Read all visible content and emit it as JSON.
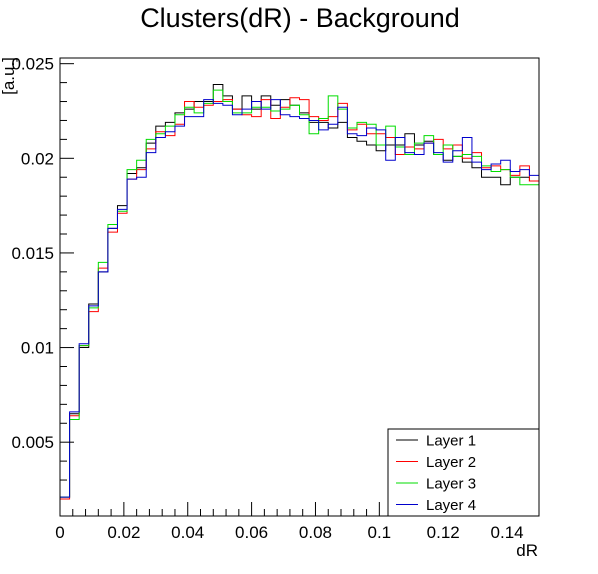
{
  "chart_data": {
    "type": "line",
    "title": "Clusters(dR) - Background",
    "xlabel": "dR",
    "ylabel": "[a.u.]",
    "xlim": [
      0,
      0.15
    ],
    "ylim": [
      0.0011,
      0.0253
    ],
    "xticks": [
      {
        "v": 0,
        "label": "0"
      },
      {
        "v": 0.02,
        "label": "0.02"
      },
      {
        "v": 0.04,
        "label": "0.04"
      },
      {
        "v": 0.06,
        "label": "0.06"
      },
      {
        "v": 0.08,
        "label": "0.08"
      },
      {
        "v": 0.1,
        "label": "0.1"
      },
      {
        "v": 0.12,
        "label": "0.12"
      },
      {
        "v": 0.14,
        "label": "0.14"
      }
    ],
    "yticks": [
      {
        "v": 0.005,
        "label": "0.005"
      },
      {
        "v": 0.01,
        "label": "0.01"
      },
      {
        "v": 0.015,
        "label": "0.015"
      },
      {
        "v": 0.02,
        "label": "0.02"
      },
      {
        "v": 0.025,
        "label": "0.025"
      }
    ],
    "bin_width": 0.003,
    "series": [
      {
        "name": "Layer 1",
        "color": "#000000",
        "values": [
          0.0021,
          0.0065,
          0.01,
          0.0123,
          0.014,
          0.0163,
          0.0175,
          0.0192,
          0.0195,
          0.0208,
          0.0217,
          0.0219,
          0.0224,
          0.0226,
          0.023,
          0.023,
          0.0239,
          0.0233,
          0.0226,
          0.0233,
          0.0226,
          0.0233,
          0.0228,
          0.0231,
          0.0228,
          0.0224,
          0.0219,
          0.0219,
          0.0216,
          0.0219,
          0.0211,
          0.0209,
          0.0207,
          0.0204,
          0.0207,
          0.0207,
          0.0213,
          0.0207,
          0.0209,
          0.0202,
          0.0199,
          0.0201,
          0.0198,
          0.0195,
          0.019,
          0.019,
          0.0186,
          0.019,
          0.019,
          0.0188
        ]
      },
      {
        "name": "Layer 2",
        "color": "#ff0000",
        "values": [
          0.002,
          0.0064,
          0.0101,
          0.0119,
          0.0142,
          0.0161,
          0.0171,
          0.0189,
          0.0194,
          0.0205,
          0.0214,
          0.0212,
          0.0218,
          0.023,
          0.0227,
          0.0228,
          0.023,
          0.0231,
          0.0226,
          0.0223,
          0.0222,
          0.0231,
          0.0221,
          0.0227,
          0.0232,
          0.0231,
          0.0222,
          0.022,
          0.0222,
          0.0229,
          0.0215,
          0.0218,
          0.0213,
          0.0213,
          0.0211,
          0.0202,
          0.0206,
          0.0205,
          0.0208,
          0.021,
          0.0205,
          0.0207,
          0.02,
          0.0203,
          0.0195,
          0.0196,
          0.0194,
          0.0191,
          0.0196,
          0.0188
        ]
      },
      {
        "name": "Layer 3",
        "color": "#00dd00",
        "values": [
          0.0021,
          0.0062,
          0.0101,
          0.0121,
          0.0145,
          0.0165,
          0.0172,
          0.0194,
          0.0199,
          0.021,
          0.0213,
          0.0217,
          0.0223,
          0.0227,
          0.0224,
          0.0229,
          0.0236,
          0.023,
          0.0224,
          0.0224,
          0.0227,
          0.0227,
          0.0225,
          0.0226,
          0.0228,
          0.0223,
          0.0213,
          0.0221,
          0.0233,
          0.0226,
          0.0216,
          0.0219,
          0.0218,
          0.0207,
          0.0217,
          0.0206,
          0.0202,
          0.0208,
          0.0212,
          0.0202,
          0.0207,
          0.0201,
          0.0202,
          0.0201,
          0.0196,
          0.0193,
          0.0194,
          0.019,
          0.0186,
          0.0186
        ]
      },
      {
        "name": "Layer 4",
        "color": "#0000cc",
        "values": [
          0.0021,
          0.0066,
          0.0102,
          0.0122,
          0.014,
          0.0163,
          0.0173,
          0.0189,
          0.019,
          0.0203,
          0.0211,
          0.0214,
          0.0217,
          0.0222,
          0.0222,
          0.0231,
          0.0229,
          0.0228,
          0.0223,
          0.0226,
          0.023,
          0.0226,
          0.0231,
          0.0223,
          0.0222,
          0.0221,
          0.022,
          0.0215,
          0.0218,
          0.0227,
          0.0213,
          0.0212,
          0.0216,
          0.0215,
          0.0199,
          0.0211,
          0.0203,
          0.0202,
          0.0208,
          0.0203,
          0.0198,
          0.0204,
          0.0211,
          0.0198,
          0.0194,
          0.0197,
          0.0199,
          0.0193,
          0.0194,
          0.0191
        ]
      }
    ],
    "legend_position": "bottom-right",
    "grid": false
  }
}
